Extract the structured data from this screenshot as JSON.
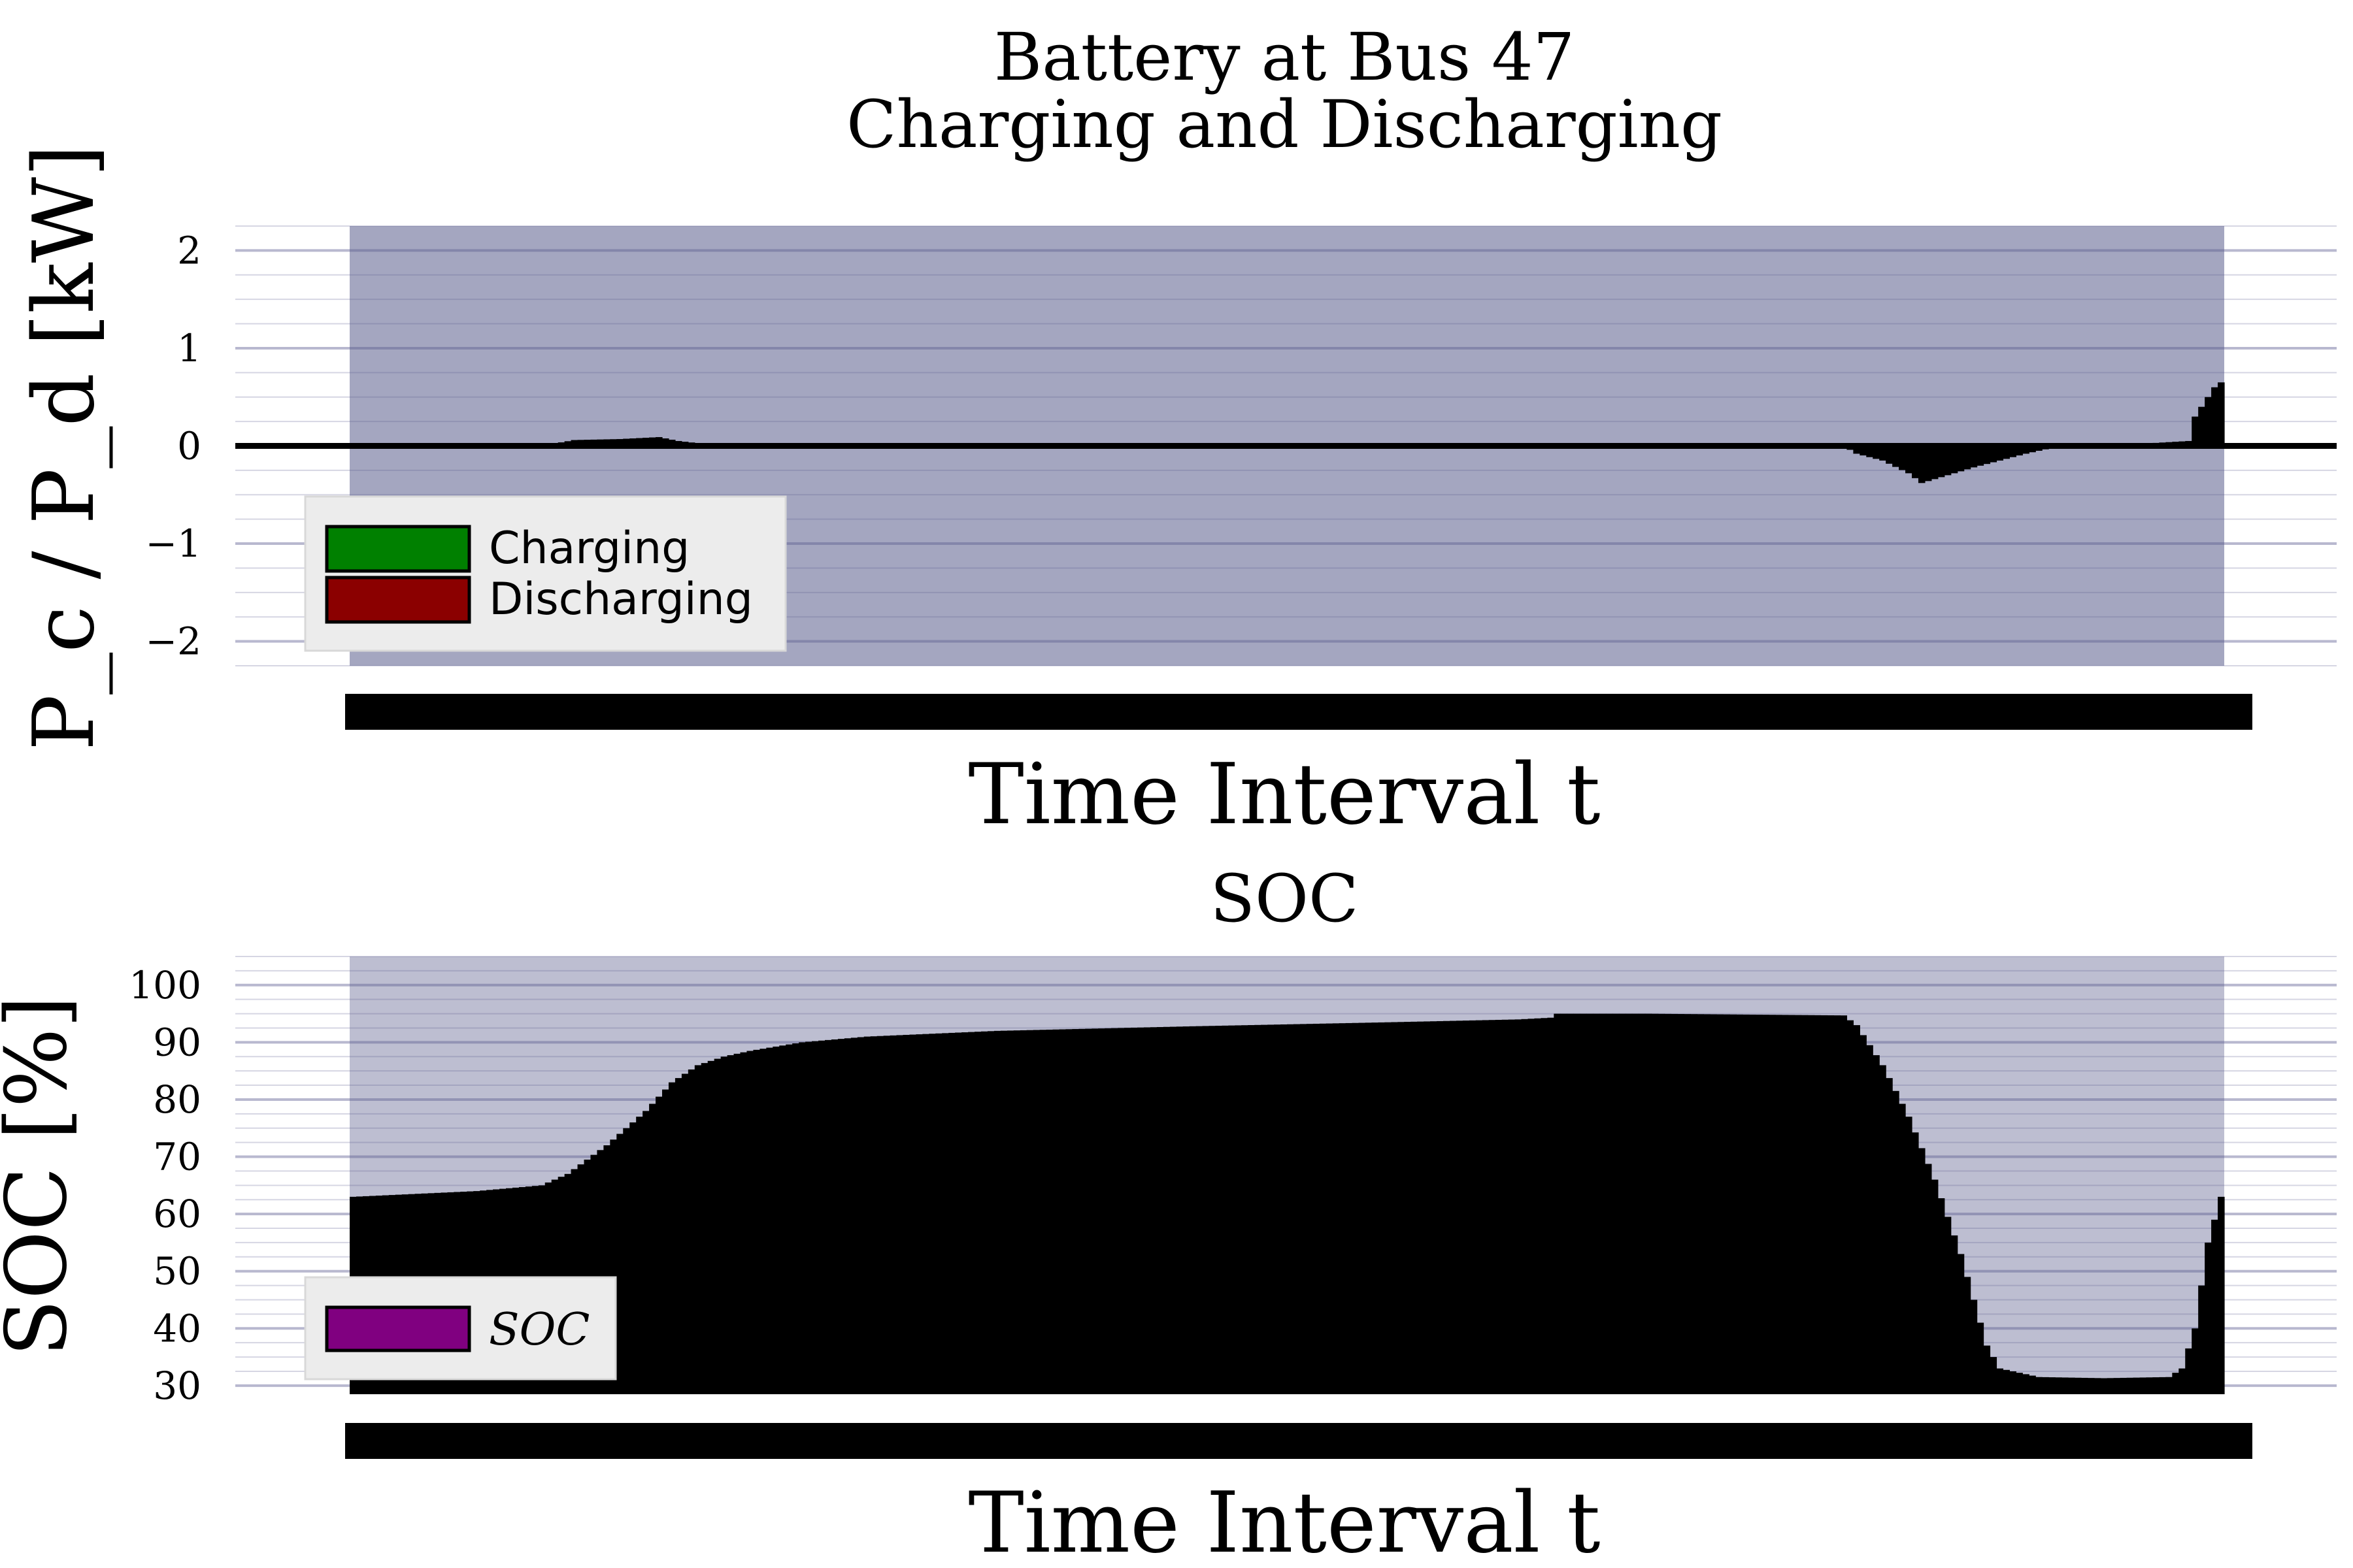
{
  "chart_data": [
    {
      "type": "bar",
      "title_line1": "Battery at Bus 47",
      "title_line2": "Charging and Discharging",
      "xlabel": "Time Interval t",
      "ylabel": "P_c / P_d [kW]",
      "ylim": [
        -2.25,
        2.25
      ],
      "yticks": [
        -2,
        -1,
        0,
        1,
        2
      ],
      "ytick_labels": [
        "−2",
        "−1",
        "0",
        "1",
        "2"
      ],
      "xlim": [
        1,
        288
      ],
      "grid": true,
      "legend_position": "lower-left",
      "legend": [
        {
          "label": "Charging",
          "color": "#008000"
        },
        {
          "label": "Discharging",
          "color": "#8b0000"
        }
      ],
      "x": [
        1,
        30,
        35,
        42,
        48,
        51,
        55,
        58,
        60,
        230,
        232,
        236,
        240,
        242,
        246,
        250,
        254,
        258,
        262,
        264,
        270,
        283,
        284,
        285,
        286,
        287,
        288
      ],
      "values": [
        0,
        0,
        0.06,
        0.07,
        0.09,
        0.05,
        0.02,
        0.01,
        0,
        0,
        -0.08,
        -0.15,
        -0.28,
        -0.38,
        -0.3,
        -0.22,
        -0.15,
        -0.08,
        -0.02,
        0,
        0,
        0.05,
        0.3,
        0.4,
        0.5,
        0.6,
        0.65
      ]
    },
    {
      "type": "bar",
      "title": "SOC",
      "xlabel": "Time Interval t",
      "ylabel": "SOC [%]",
      "ylim": [
        28.5,
        105
      ],
      "yticks": [
        30,
        40,
        50,
        60,
        70,
        80,
        90,
        100
      ],
      "xlim": [
        1,
        288
      ],
      "grid": true,
      "legend_position": "lower-left",
      "legend": [
        {
          "label": "SOC",
          "color": "#800080"
        }
      ],
      "x": [
        1,
        20,
        30,
        34,
        40,
        46,
        50,
        54,
        58,
        62,
        70,
        80,
        100,
        130,
        160,
        180,
        185,
        186,
        200,
        230,
        232,
        236,
        240,
        244,
        248,
        250,
        252,
        254,
        260,
        270,
        280,
        282,
        284,
        286,
        288
      ],
      "values": [
        63,
        64,
        65,
        67,
        72,
        78,
        83,
        86,
        87.5,
        88.5,
        90,
        91,
        92,
        92.8,
        93.5,
        94,
        94.3,
        95,
        95,
        94.7,
        93,
        86,
        77,
        66,
        53,
        45,
        37,
        33,
        31.5,
        31.3,
        31.5,
        33,
        40,
        55,
        63
      ]
    }
  ]
}
